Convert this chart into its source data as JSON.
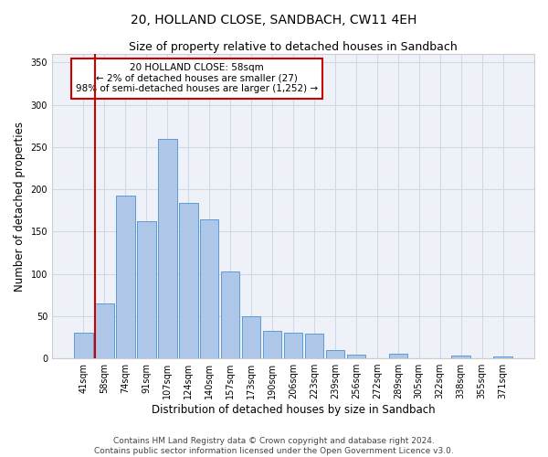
{
  "title": "20, HOLLAND CLOSE, SANDBACH, CW11 4EH",
  "subtitle": "Size of property relative to detached houses in Sandbach",
  "xlabel": "Distribution of detached houses by size in Sandbach",
  "ylabel": "Number of detached properties",
  "categories": [
    "41sqm",
    "58sqm",
    "74sqm",
    "91sqm",
    "107sqm",
    "124sqm",
    "140sqm",
    "157sqm",
    "173sqm",
    "190sqm",
    "206sqm",
    "223sqm",
    "239sqm",
    "256sqm",
    "272sqm",
    "289sqm",
    "305sqm",
    "322sqm",
    "338sqm",
    "355sqm",
    "371sqm"
  ],
  "values": [
    30,
    65,
    193,
    162,
    260,
    184,
    164,
    103,
    50,
    33,
    30,
    29,
    10,
    4,
    0,
    6,
    0,
    0,
    3,
    0,
    2
  ],
  "bar_color": "#aec6e8",
  "bar_edge_color": "#5b9bd5",
  "highlight_index": 1,
  "highlight_line_color": "#cc0000",
  "ylim": [
    0,
    360
  ],
  "yticks": [
    0,
    50,
    100,
    150,
    200,
    250,
    300,
    350
  ],
  "annotation_line1": "20 HOLLAND CLOSE: 58sqm",
  "annotation_line2": "← 2% of detached houses are smaller (27)",
  "annotation_line3": "98% of semi-detached houses are larger (1,252) →",
  "annotation_box_color": "#cc0000",
  "grid_color": "#d0d8e8",
  "background_color": "#eef2f8",
  "footer_line1": "Contains HM Land Registry data © Crown copyright and database right 2024.",
  "footer_line2": "Contains public sector information licensed under the Open Government Licence v3.0.",
  "title_fontsize": 10,
  "subtitle_fontsize": 9,
  "tick_fontsize": 7,
  "annotation_fontsize": 7.5,
  "xlabel_fontsize": 8.5,
  "ylabel_fontsize": 8.5,
  "footer_fontsize": 6.5
}
